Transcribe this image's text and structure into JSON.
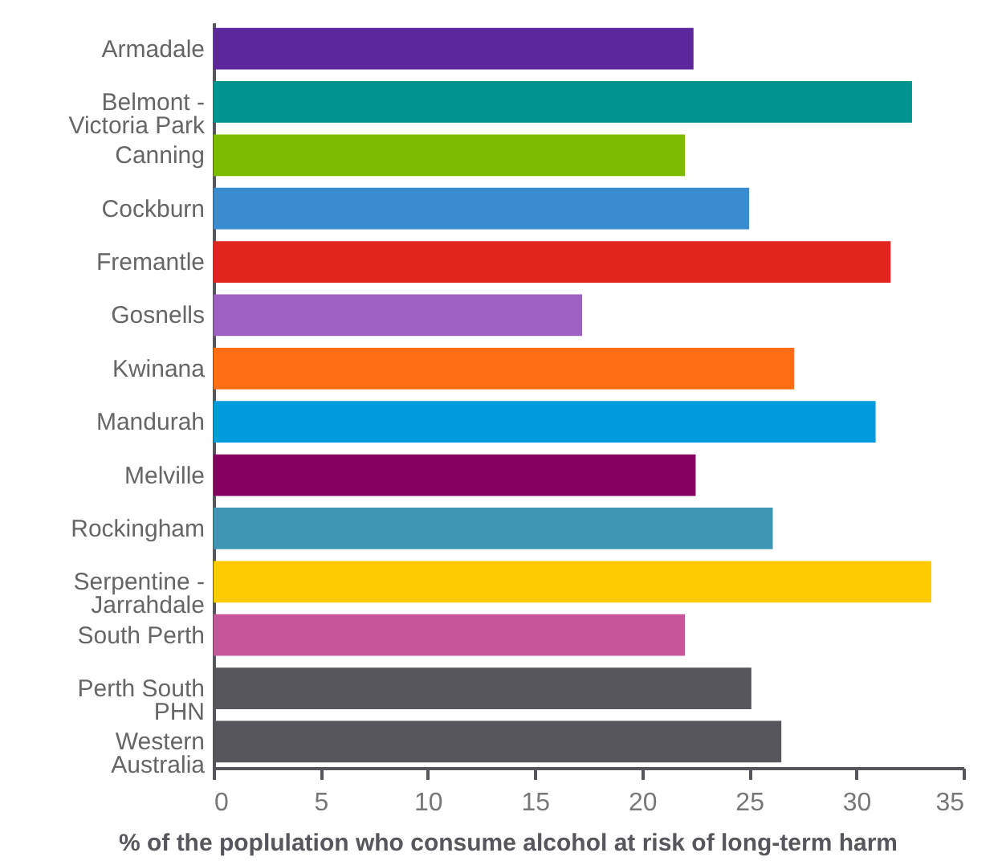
{
  "chart_data": {
    "type": "bar",
    "orientation": "horizontal",
    "xlabel": "% of the poplulation who consume alcohol at risk of long-term harm",
    "categories": [
      "Armadale",
      "Belmont - Victoria Park",
      "Canning",
      "Cockburn",
      "Fremantle",
      "Gosnells",
      "Kwinana",
      "Mandurah",
      "Melville",
      "Rockingham",
      "Serpentine - Jarrahdale",
      "South Perth",
      "Perth South PHN",
      "Western Australia"
    ],
    "values": [
      22.4,
      32.6,
      22.0,
      25.0,
      31.6,
      17.2,
      27.1,
      30.9,
      22.5,
      26.1,
      33.5,
      22.0,
      25.1,
      26.5
    ],
    "colors": [
      "#5c279c",
      "#009390",
      "#7dbb00",
      "#398ccf",
      "#df261d",
      "#9d5fc0",
      "#ff6d14",
      "#009bdd",
      "#850060",
      "#3c96b4",
      "#ffcb00",
      "#c7559a",
      "#56565c",
      "#56565c"
    ],
    "xlim": [
      0,
      35
    ],
    "xticks": [
      0,
      5,
      10,
      15,
      20,
      25,
      30,
      35
    ],
    "grid": false
  }
}
